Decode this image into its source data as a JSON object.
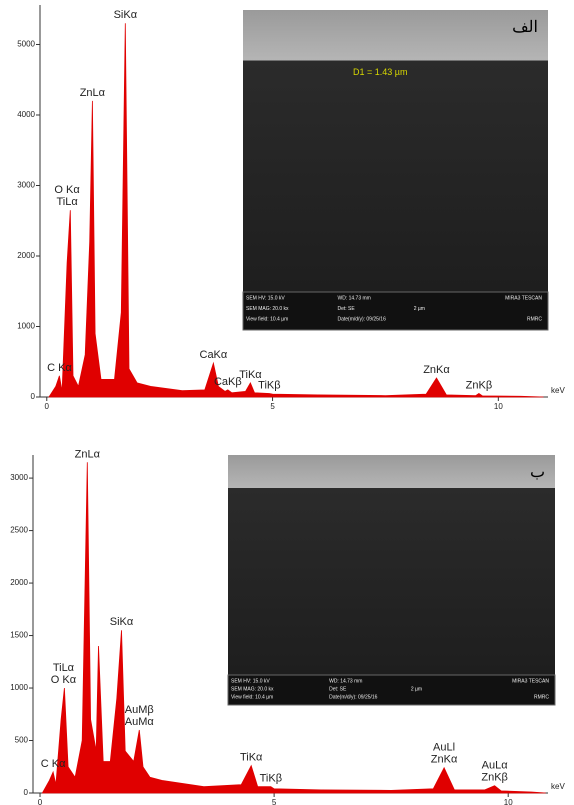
{
  "chart_data": [
    {
      "type": "area",
      "color": "#e00000",
      "x_label": "keV",
      "xlim": [
        -0.15,
        11.1
      ],
      "xticks": [
        0,
        5,
        10
      ],
      "ylim": [
        0,
        5560
      ],
      "yticks": [
        0,
        1000,
        2000,
        3000,
        4000,
        5000
      ],
      "x": [
        0.05,
        0.2,
        0.28,
        0.34,
        0.45,
        0.52,
        0.58,
        0.7,
        0.85,
        0.95,
        1.01,
        1.07,
        1.2,
        1.5,
        1.65,
        1.74,
        1.82,
        2.0,
        2.3,
        3.0,
        3.5,
        3.69,
        3.8,
        3.95,
        4.01,
        4.1,
        4.4,
        4.51,
        4.6,
        4.93,
        5.0,
        6.0,
        7.5,
        8.4,
        8.63,
        8.85,
        9.5,
        9.57,
        9.65,
        10.5,
        11.0
      ],
      "values": [
        0,
        150,
        300,
        80,
        1900,
        2650,
        300,
        150,
        600,
        2200,
        4200,
        900,
        250,
        250,
        1200,
        5300,
        400,
        200,
        150,
        90,
        100,
        480,
        150,
        80,
        100,
        60,
        80,
        200,
        60,
        50,
        40,
        30,
        20,
        40,
        270,
        30,
        20,
        50,
        15,
        10,
        0
      ],
      "annotations": [
        {
          "lines": [
            "C Kα"
          ],
          "x": 0.28,
          "y": 300
        },
        {
          "lines": [
            "O Kα",
            "TiLα"
          ],
          "x": 0.45,
          "y": 2650
        },
        {
          "lines": [
            "ZnLα"
          ],
          "x": 1.01,
          "y": 4200
        },
        {
          "lines": [
            "SiKα"
          ],
          "x": 1.74,
          "y": 5300
        },
        {
          "lines": [
            "CaKα"
          ],
          "x": 3.69,
          "y": 480
        },
        {
          "lines": [
            "CaKβ"
          ],
          "x": 4.01,
          "y": 100
        },
        {
          "lines": [
            "TiKα"
          ],
          "x": 4.51,
          "y": 200
        },
        {
          "lines": [
            "TiKβ"
          ],
          "x": 4.93,
          "y": 50
        },
        {
          "lines": [
            "ZnKα"
          ],
          "x": 8.63,
          "y": 270
        },
        {
          "lines": [
            "ZnKβ"
          ],
          "x": 9.57,
          "y": 50
        }
      ],
      "inset": {
        "label": "الف",
        "measurement": "D1 = 1.43 µm",
        "info": [
          [
            "SEM HV: 15.0 kV",
            "WD: 14.73 mm",
            "MIRA3 TESCAN"
          ],
          [
            "SEM MAG: 20.0 kx",
            "Det: SE",
            "2 µm"
          ],
          [
            "View field: 10.4 µm",
            "Date(m/d/y): 09/25/16",
            "RMRC"
          ]
        ]
      }
    },
    {
      "type": "area",
      "color": "#e00000",
      "x_label": "keV",
      "xlim": [
        -0.15,
        10.85
      ],
      "xticks": [
        0,
        5,
        10
      ],
      "ylim": [
        0,
        3220
      ],
      "yticks": [
        0,
        500,
        1000,
        1500,
        2000,
        2500,
        3000
      ],
      "x": [
        0.05,
        0.2,
        0.28,
        0.34,
        0.45,
        0.52,
        0.6,
        0.75,
        0.9,
        1.01,
        1.08,
        1.2,
        1.25,
        1.35,
        1.5,
        1.64,
        1.74,
        1.82,
        2.0,
        2.12,
        2.2,
        2.35,
        2.6,
        3.5,
        4.3,
        4.51,
        4.65,
        4.93,
        5.0,
        6.0,
        7.5,
        8.4,
        8.63,
        8.85,
        9.5,
        9.71,
        9.85,
        10.5,
        10.8
      ],
      "values": [
        0,
        120,
        200,
        80,
        700,
        1000,
        250,
        150,
        500,
        3150,
        700,
        400,
        1400,
        300,
        300,
        900,
        1550,
        400,
        300,
        600,
        250,
        150,
        120,
        60,
        80,
        260,
        60,
        60,
        40,
        30,
        25,
        40,
        240,
        30,
        30,
        70,
        20,
        10,
        0
      ],
      "annotations": [
        {
          "lines": [
            "C Kα"
          ],
          "x": 0.28,
          "y": 200
        },
        {
          "lines": [
            "TiLα",
            "O Kα"
          ],
          "x": 0.5,
          "y": 1000
        },
        {
          "lines": [
            "ZnLα"
          ],
          "x": 1.01,
          "y": 3150
        },
        {
          "lines": [
            "SiKα"
          ],
          "x": 1.74,
          "y": 1550
        },
        {
          "lines": [
            "AuMβ",
            "AuMα"
          ],
          "x": 2.12,
          "y": 600
        },
        {
          "lines": [
            "TiKα"
          ],
          "x": 4.51,
          "y": 260
        },
        {
          "lines": [
            "TiKβ"
          ],
          "x": 4.93,
          "y": 60
        },
        {
          "lines": [
            "AuLl",
            "ZnKα"
          ],
          "x": 8.63,
          "y": 240
        },
        {
          "lines": [
            "AuLα",
            "ZnKβ"
          ],
          "x": 9.71,
          "y": 70
        }
      ],
      "inset": {
        "label": "ب",
        "info": [
          [
            "SEM HV: 15.0 kV",
            "WD: 14.73 mm",
            "MIRA3 TESCAN"
          ],
          [
            "SEM MAG: 20.0 kx",
            "Det: SE",
            "2 µm"
          ],
          [
            "View field: 10.4 µm",
            "Date(m/d/y): 09/25/16",
            "RMRC"
          ]
        ]
      }
    }
  ]
}
